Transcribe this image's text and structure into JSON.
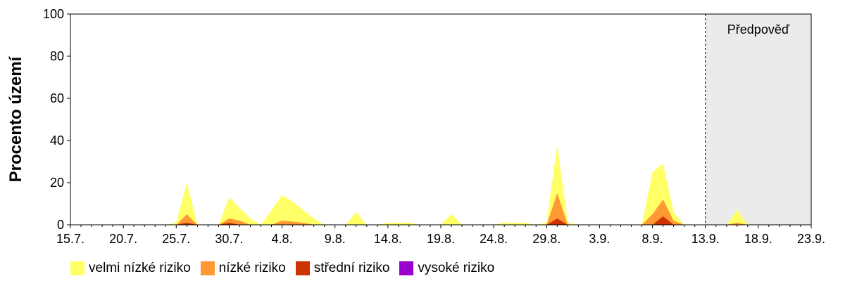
{
  "chart_data": {
    "type": "area",
    "ylabel": "Procento území",
    "ylim": [
      0,
      100
    ],
    "yticks": [
      "0",
      "20",
      "40",
      "60",
      "80",
      "100"
    ],
    "xlabels": [
      "15.7.",
      "20.7.",
      "25.7.",
      "30.7.",
      "4.8.",
      "9.8.",
      "14.8.",
      "19.8.",
      "24.8.",
      "29.8.",
      "3.9.",
      "8.9.",
      "13.9.",
      "18.9.",
      "23.9."
    ],
    "forecast_label": "Předpověď",
    "forecast_start_day": 60,
    "total_days": 70,
    "series": [
      {
        "name": "velmi nízké riziko",
        "color": "#FFFF66",
        "points": [
          [
            0,
            0
          ],
          [
            9,
            0
          ],
          [
            10,
            1
          ],
          [
            11,
            20
          ],
          [
            12,
            0
          ],
          [
            14,
            0
          ],
          [
            15,
            13
          ],
          [
            17,
            3
          ],
          [
            18,
            0
          ],
          [
            19,
            7
          ],
          [
            20,
            14
          ],
          [
            21,
            11
          ],
          [
            23,
            3
          ],
          [
            24,
            0
          ],
          [
            26,
            0
          ],
          [
            27,
            6
          ],
          [
            28,
            0
          ],
          [
            29,
            0
          ],
          [
            30,
            1
          ],
          [
            32,
            1
          ],
          [
            33,
            0
          ],
          [
            35,
            0
          ],
          [
            36,
            5
          ],
          [
            37,
            0
          ],
          [
            40,
            0
          ],
          [
            41,
            1
          ],
          [
            43,
            1
          ],
          [
            44,
            0
          ],
          [
            45,
            1
          ],
          [
            46,
            38
          ],
          [
            47,
            1
          ],
          [
            48,
            0
          ],
          [
            54,
            0
          ],
          [
            55,
            25
          ],
          [
            56,
            29
          ],
          [
            57,
            6
          ],
          [
            58,
            0
          ],
          [
            62,
            0
          ],
          [
            63,
            7
          ],
          [
            64,
            0
          ],
          [
            70,
            0
          ]
        ]
      },
      {
        "name": "nízké riziko",
        "color": "#FF9933",
        "points": [
          [
            0,
            0
          ],
          [
            10,
            0
          ],
          [
            11,
            5
          ],
          [
            12,
            0
          ],
          [
            14,
            0
          ],
          [
            15,
            3
          ],
          [
            16,
            2
          ],
          [
            17,
            0
          ],
          [
            19,
            0
          ],
          [
            20,
            2
          ],
          [
            22,
            1
          ],
          [
            23,
            0
          ],
          [
            45,
            0
          ],
          [
            46,
            15
          ],
          [
            47,
            0
          ],
          [
            54,
            0
          ],
          [
            55,
            5
          ],
          [
            56,
            12
          ],
          [
            57,
            2
          ],
          [
            58,
            0
          ],
          [
            62,
            0
          ],
          [
            63,
            1
          ],
          [
            64,
            0
          ],
          [
            70,
            0
          ]
        ]
      },
      {
        "name": "střední riziko",
        "color": "#CC3300",
        "points": [
          [
            0,
            0
          ],
          [
            10,
            0
          ],
          [
            11,
            1
          ],
          [
            12,
            0
          ],
          [
            14,
            0
          ],
          [
            15,
            1
          ],
          [
            16,
            0
          ],
          [
            45,
            0
          ],
          [
            46,
            3
          ],
          [
            47,
            0
          ],
          [
            55,
            0
          ],
          [
            56,
            4
          ],
          [
            57,
            0
          ],
          [
            70,
            0
          ]
        ]
      },
      {
        "name": "vysoké riziko",
        "color": "#9900CC",
        "points": [
          [
            0,
            0
          ],
          [
            70,
            0
          ]
        ]
      }
    ]
  }
}
